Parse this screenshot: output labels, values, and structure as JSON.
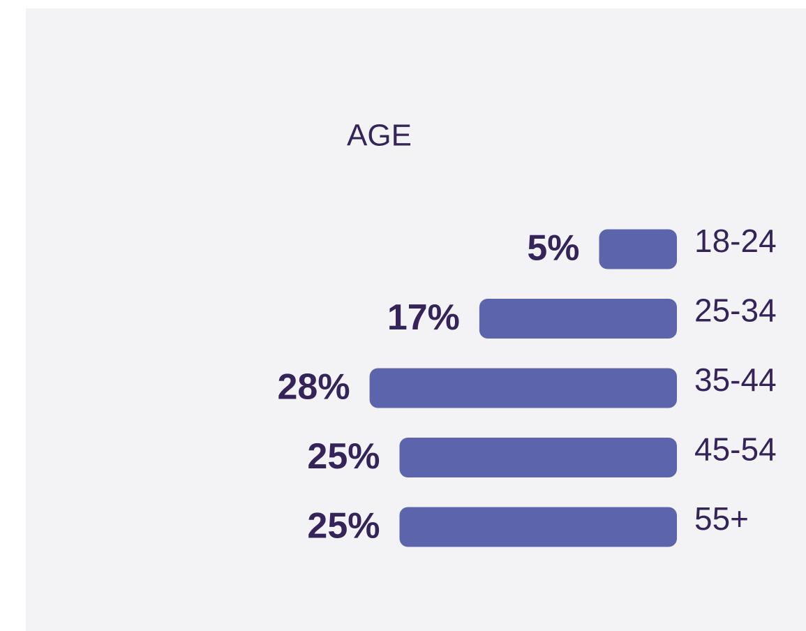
{
  "chart_data": {
    "type": "bar",
    "orientation": "horizontal",
    "title": "AGE",
    "categories": [
      "18-24",
      "25-34",
      "35-44",
      "45-54",
      "55+"
    ],
    "values": [
      5,
      17,
      28,
      25,
      25
    ],
    "value_labels": [
      "5%",
      "17%",
      "28%",
      "25%",
      "25%"
    ],
    "color": "#5c64ab"
  }
}
